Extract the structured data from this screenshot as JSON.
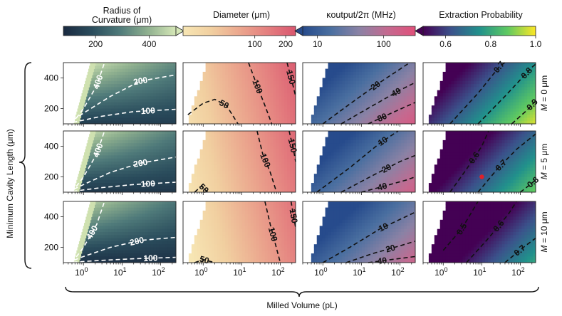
{
  "chart_data": {
    "type": "heatmap",
    "xlabel": "Milled Volume (pL)",
    "ylabel": "Minimum Cavity Length (μm)",
    "xscale": "log",
    "xlim": [
      0.3,
      250
    ],
    "ylim": [
      100,
      500
    ],
    "x_ticks": [
      {
        "base": "10",
        "exp": "0",
        "value": 1
      },
      {
        "base": "10",
        "exp": "1",
        "value": 10
      },
      {
        "base": "10",
        "exp": "2",
        "value": 100
      }
    ],
    "y_ticks": [
      "200",
      "400"
    ],
    "row_labels": [
      {
        "prefix": "M",
        "text": " = 0 μm"
      },
      {
        "prefix": "M",
        "text": " = 5 μm"
      },
      {
        "prefix": "M",
        "text": " = 10 μm"
      }
    ],
    "columns": [
      {
        "title": "Radius of\nCurvature (μm)",
        "colormap": [
          "#1a2a40",
          "#2a4c5c",
          "#4f7a7a",
          "#8fb08f",
          "#d6e8b8"
        ],
        "colorbar_ticks": [
          {
            "label": "200",
            "value": 200
          },
          {
            "label": "400",
            "value": 400
          }
        ],
        "colorbar_range": [
          80,
          500
        ],
        "colorbar_extend": "max",
        "contour_color": "#ffffff",
        "contours": [
          [
            {
              "label": "400",
              "pts": [
                [
                  0.5,
                  100
                ],
                [
                  1,
                  200
                ],
                [
                  2.2,
                  350
                ],
                [
                  3.5,
                  500
                ]
              ],
              "at": 0.72
            },
            {
              "label": "200",
              "pts": [
                [
                  0.38,
                  100
                ],
                [
                  1,
                  170
                ],
                [
                  5,
                  280
                ],
                [
                  30,
                  380
                ],
                [
                  250,
                  420
                ]
              ],
              "at": 0.75
            },
            {
              "label": "100",
              "pts": [
                [
                  0.35,
                  100
                ],
                [
                  3,
                  150
                ],
                [
                  20,
                  180
                ],
                [
                  250,
                  195
                ]
              ],
              "at": 0.78
            }
          ],
          [
            {
              "label": "400",
              "pts": [
                [
                  0.5,
                  100
                ],
                [
                  1,
                  200
                ],
                [
                  2.2,
                  350
                ],
                [
                  3.5,
                  500
                ]
              ],
              "at": 0.72
            },
            {
              "label": "200",
              "pts": [
                [
                  0.38,
                  100
                ],
                [
                  1,
                  150
                ],
                [
                  5,
                  230
                ],
                [
                  30,
                  290
                ],
                [
                  250,
                  330
                ]
              ],
              "at": 0.75
            },
            {
              "label": "100",
              "pts": [
                [
                  0.35,
                  100
                ],
                [
                  3,
                  130
                ],
                [
                  20,
                  150
                ],
                [
                  250,
                  165
                ]
              ],
              "at": 0.78
            }
          ],
          [
            {
              "label": "400",
              "pts": [
                [
                  0.5,
                  100
                ],
                [
                  1,
                  200
                ],
                [
                  2.2,
                  350
                ],
                [
                  3.5,
                  500
                ]
              ],
              "at": 0.55
            },
            {
              "label": "200",
              "pts": [
                [
                  0.38,
                  100
                ],
                [
                  1,
                  140
                ],
                [
                  5,
                  200
                ],
                [
                  30,
                  245
                ],
                [
                  250,
                  265
                ]
              ],
              "at": 0.72
            },
            {
              "label": "100",
              "pts": [
                [
                  0.35,
                  100
                ],
                [
                  3,
                  115
                ],
                [
                  20,
                  125
                ],
                [
                  250,
                  135
                ]
              ],
              "at": 0.8
            }
          ]
        ]
      },
      {
        "title": "Diameter (μm)",
        "colormap": [
          "#f7e6b4",
          "#f1cfa0",
          "#eba78e",
          "#e47f7f",
          "#d9566f"
        ],
        "colorbar_ticks": [
          {
            "label": "100",
            "value": 100
          },
          {
            "label": "200",
            "value": 200
          }
        ],
        "colorbar_range": [
          20,
          250
        ],
        "colorbar_extend": "none",
        "contour_color": "#111111",
        "contours": [
          [
            {
              "label": "50",
              "pts": [
                [
                  0.4,
                  160
                ],
                [
                  1,
                  235
                ],
                [
                  2,
                  260
                ],
                [
                  4,
                  220
                ],
                [
                  8,
                  100
                ]
              ],
              "at": 0.7
            },
            {
              "label": "100",
              "pts": [
                [
                  15,
                  500
                ],
                [
                  25,
                  350
                ],
                [
                  40,
                  220
                ],
                [
                  60,
                  100
                ]
              ],
              "at": 0.35
            },
            {
              "label": "150",
              "pts": [
                [
                  150,
                  500
                ],
                [
                  200,
                  380
                ],
                [
                  250,
                  280
                ]
              ],
              "at": 0.4
            }
          ],
          [
            {
              "label": "50",
              "pts": [
                [
                  0.6,
                  100
                ],
                [
                  0.9,
                  140
                ],
                [
                  1.3,
                  100
                ]
              ],
              "at": 0.7
            },
            {
              "label": "100",
              "pts": [
                [
                  25,
                  500
                ],
                [
                  35,
                  350
                ],
                [
                  55,
                  230
                ],
                [
                  80,
                  100
                ]
              ],
              "at": 0.45
            },
            {
              "label": "150",
              "pts": [
                [
                  170,
                  500
                ],
                [
                  220,
                  380
                ],
                [
                  250,
                  300
                ]
              ],
              "at": 0.4
            }
          ],
          [
            {
              "label": "50",
              "pts": [
                [
                  0.6,
                  100
                ],
                [
                  1,
                  120
                ],
                [
                  2,
                  100
                ]
              ],
              "at": 0.55
            },
            {
              "label": "100",
              "pts": [
                [
                  40,
                  500
                ],
                [
                  55,
                  350
                ],
                [
                  75,
                  220
                ],
                [
                  100,
                  100
                ]
              ],
              "at": 0.5
            },
            {
              "label": "150",
              "pts": [
                [
                  190,
                  500
                ],
                [
                  230,
                  380
                ],
                [
                  250,
                  330
                ]
              ],
              "at": 0.4
            }
          ]
        ]
      },
      {
        "title": "κoutput/2π (MHz)",
        "colormap": [
          "#274b8c",
          "#4a6fa0",
          "#8a82a5",
          "#c46a90",
          "#e0507a"
        ],
        "colorbar_ticks": [
          {
            "label": "10",
            "value": 10
          },
          {
            "label": "100",
            "value": 100
          }
        ],
        "colorbar_range": [
          6,
          300
        ],
        "colorbar_extend": "min",
        "contour_color": "#111111",
        "contours": [
          [
            {
              "label": "20",
              "pts": [
                [
                  1,
                  100
                ],
                [
                  5,
                  230
                ],
                [
                  30,
                  370
                ],
                [
                  180,
                  500
                ]
              ],
              "at": 0.62
            },
            {
              "label": "40",
              "pts": [
                [
                  3,
                  100
                ],
                [
                  20,
                  220
                ],
                [
                  100,
                  320
                ],
                [
                  250,
                  370
                ]
              ],
              "at": 0.62
            },
            {
              "label": "80",
              "pts": [
                [
                  15,
                  100
                ],
                [
                  60,
                  170
                ],
                [
                  250,
                  240
                ]
              ],
              "at": 0.3
            }
          ],
          [
            {
              "label": "10",
              "pts": [
                [
                  0.7,
                  100
                ],
                [
                  5,
                  260
                ],
                [
                  30,
                  420
                ],
                [
                  90,
                  500
                ]
              ],
              "at": 0.72
            },
            {
              "label": "20",
              "pts": [
                [
                  3,
                  100
                ],
                [
                  20,
                  210
                ],
                [
                  100,
                  300
                ],
                [
                  250,
                  340
                ]
              ],
              "at": 0.5
            },
            {
              "label": "40",
              "pts": [
                [
                  10,
                  100
                ],
                [
                  40,
                  140
                ],
                [
                  150,
                  180
                ],
                [
                  250,
                  200
                ]
              ],
              "at": 0.3
            }
          ],
          [
            {
              "label": "10",
              "pts": [
                [
                  1,
                  100
                ],
                [
                  5,
                  200
                ],
                [
                  30,
                  320
                ],
                [
                  250,
                  430
                ]
              ],
              "at": 0.7
            },
            {
              "label": "20",
              "pts": [
                [
                  4,
                  100
                ],
                [
                  20,
                  160
                ],
                [
                  100,
                  210
                ],
                [
                  250,
                  240
                ]
              ],
              "at": 0.55
            },
            {
              "label": "40",
              "pts": [
                [
                  15,
                  100
                ],
                [
                  60,
                  120
                ],
                [
                  250,
                  140
                ]
              ],
              "at": 0.3
            }
          ]
        ]
      },
      {
        "title": "Extraction Probability",
        "colormap": [
          "#440154",
          "#3b528b",
          "#21918c",
          "#5ec962",
          "#fde725"
        ],
        "colorbar_ticks": [
          {
            "label": "0.6",
            "value": 0.6
          },
          {
            "label": "0.8",
            "value": 0.8
          },
          {
            "label": "1.0",
            "value": 1.0
          }
        ],
        "colorbar_range": [
          0.5,
          1.0
        ],
        "colorbar_extend": "min",
        "contour_color": "#111111",
        "contours": [
          [
            {
              "label": "0.7",
              "pts": [
                [
                  1.5,
                  100
                ],
                [
                  8,
                  300
                ],
                [
                  30,
                  480
                ],
                [
                  40,
                  500
                ]
              ],
              "at": 0.65
            },
            {
              "label": "0.8",
              "pts": [
                [
                  8,
                  100
                ],
                [
                  40,
                  280
                ],
                [
                  200,
                  470
                ],
                [
                  250,
                  490
                ]
              ],
              "at": 0.6
            },
            {
              "label": "0.9",
              "pts": [
                [
                  60,
                  100
                ],
                [
                  150,
                  190
                ],
                [
                  250,
                  250
                ]
              ],
              "at": 0.8
            }
          ],
          [
            {
              "label": "0.6",
              "pts": [
                [
                  1.5,
                  100
                ],
                [
                  4,
                  250
                ],
                [
                  10,
                  400
                ],
                [
                  15,
                  500
                ]
              ],
              "at": 0.5
            },
            {
              "label": "0.7",
              "pts": [
                [
                  8,
                  100
                ],
                [
                  25,
                  250
                ],
                [
                  80,
                  380
                ],
                [
                  250,
                  480
                ]
              ],
              "at": 0.4
            },
            {
              "label": "0.8",
              "pts": [
                [
                  100,
                  100
                ],
                [
                  180,
                  150
                ],
                [
                  250,
                  180
                ]
              ],
              "at": 0.75
            }
          ],
          [
            {
              "label": "0.5",
              "pts": [
                [
                  1,
                  180
                ],
                [
                  3,
                  320
                ],
                [
                  8,
                  500
                ]
              ],
              "at": 0.5
            },
            {
              "label": "0.6",
              "pts": [
                [
                  4,
                  100
                ],
                [
                  15,
                  260
                ],
                [
                  50,
                  420
                ],
                [
                  80,
                  500
                ]
              ],
              "at": 0.5
            },
            {
              "label": "0.7",
              "pts": [
                [
                  40,
                  100
                ],
                [
                  120,
                  200
                ],
                [
                  250,
                  260
                ]
              ],
              "at": 0.4
            }
          ]
        ]
      }
    ],
    "marker": {
      "panel_row": 1,
      "panel_col": 3,
      "x": 10,
      "y": 200,
      "color": "#e0202a"
    }
  }
}
